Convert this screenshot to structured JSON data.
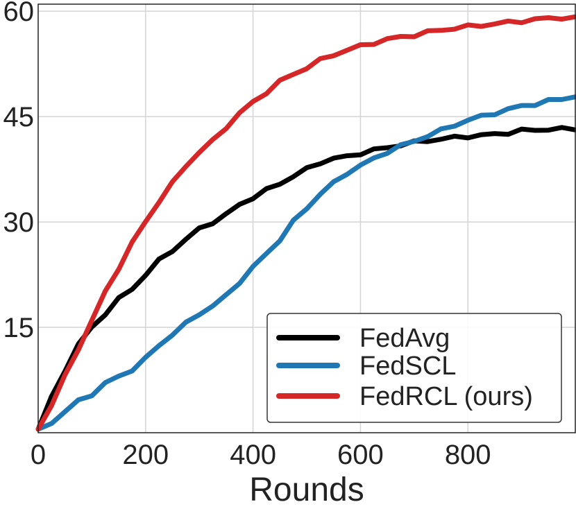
{
  "chart_data": {
    "type": "line",
    "title": "",
    "xlabel": "Rounds",
    "ylabel": "",
    "xlim": [
      0,
      1000
    ],
    "ylim": [
      0,
      61
    ],
    "xticks": [
      0,
      200,
      400,
      600,
      800
    ],
    "yticks": [
      15,
      30,
      45,
      60
    ],
    "grid": true,
    "legend_position": "bottom-right",
    "x": [
      0,
      25,
      50,
      75,
      100,
      125,
      150,
      175,
      200,
      225,
      250,
      275,
      300,
      325,
      350,
      375,
      400,
      425,
      450,
      475,
      500,
      525,
      550,
      575,
      600,
      625,
      650,
      675,
      700,
      725,
      750,
      775,
      800,
      825,
      850,
      875,
      900,
      925,
      950,
      975,
      1000
    ],
    "series": [
      {
        "name": "FedAvg",
        "color": "#000000",
        "values": [
          0.5,
          5.0,
          9.0,
          12.5,
          15.0,
          17.0,
          19.0,
          20.5,
          22.5,
          24.5,
          26.0,
          27.5,
          29.0,
          30.0,
          31.0,
          32.5,
          33.5,
          34.5,
          35.5,
          36.5,
          37.5,
          38.5,
          39.0,
          39.3,
          39.8,
          40.2,
          40.6,
          41.0,
          41.3,
          41.6,
          41.8,
          42.0,
          42.2,
          42.3,
          42.5,
          42.7,
          43.0,
          43.1,
          43.2,
          43.2,
          43.1
        ]
      },
      {
        "name": "FedSCL",
        "color": "#1f77b4",
        "values": [
          0.5,
          1.5,
          3.0,
          4.5,
          5.5,
          7.0,
          8.0,
          9.0,
          10.5,
          12.5,
          14.0,
          15.5,
          17.0,
          18.0,
          19.5,
          21.5,
          23.5,
          25.5,
          27.5,
          30.0,
          32.0,
          34.0,
          35.5,
          37.0,
          38.0,
          39.0,
          40.0,
          40.8,
          41.5,
          42.3,
          43.0,
          43.8,
          44.5,
          45.0,
          45.5,
          46.0,
          46.5,
          46.8,
          47.2,
          47.5,
          47.8
        ]
      },
      {
        "name": "FedRCL (ours)",
        "color": "#d62728",
        "values": [
          0.5,
          4.0,
          8.0,
          12.0,
          16.0,
          20.0,
          23.5,
          27.0,
          30.0,
          33.0,
          35.5,
          38.0,
          40.0,
          41.5,
          43.5,
          45.5,
          47.0,
          48.5,
          50.0,
          51.0,
          52.0,
          53.0,
          53.8,
          54.5,
          55.0,
          55.5,
          56.0,
          56.3,
          56.6,
          57.0,
          57.3,
          57.6,
          57.8,
          58.0,
          58.2,
          58.4,
          58.6,
          58.8,
          59.0,
          59.1,
          59.2
        ]
      }
    ]
  }
}
